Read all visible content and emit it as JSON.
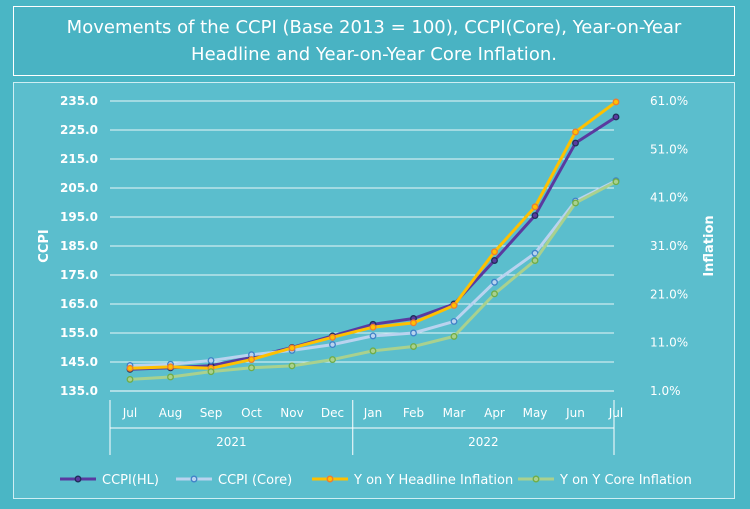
{
  "chart_data": {
    "type": "line",
    "title": "Movements of the CCPI (Base 2013 = 100), CCPI(Core), Year-on-Year Headline and Year-on-Year Core Inflation.",
    "ylabel": "CCPI",
    "y2label": "Inflation",
    "ylim": [
      135,
      235
    ],
    "y2lim": [
      1,
      61
    ],
    "y_ticks": [
      "135.0",
      "145.0",
      "155.0",
      "165.0",
      "175.0",
      "185.0",
      "195.0",
      "205.0",
      "215.0",
      "225.0",
      "235.0"
    ],
    "y2_ticks": [
      "1.0%",
      "11.0%",
      "21.0%",
      "31.0%",
      "41.0%",
      "51.0%",
      "61.0%"
    ],
    "categories": [
      "Jul",
      "Aug",
      "Sep",
      "Oct",
      "Nov",
      "Dec",
      "Jan",
      "Feb",
      "Mar",
      "Apr",
      "May",
      "Jun",
      "Jul"
    ],
    "groups": [
      {
        "label": "2021",
        "count": 6
      },
      {
        "label": "2022",
        "count": 7
      }
    ],
    "legend_position": "bottom",
    "series": [
      {
        "name": "CCPI(HL)",
        "axis": "left",
        "color": "#5a3aa0",
        "marker": "#1f2f5a",
        "values": [
          142.5,
          143.0,
          143.7,
          146.6,
          150.0,
          154.0,
          158.0,
          160.0,
          165.0,
          180.0,
          195.5,
          220.5,
          229.5
        ]
      },
      {
        "name": "CCPI (Core)",
        "axis": "left",
        "color": "#b9d3ef",
        "marker": "#3f82c8",
        "values": [
          143.8,
          144.2,
          145.5,
          147.5,
          149.0,
          151.0,
          154.0,
          155.0,
          159.0,
          172.5,
          182.5,
          200.5,
          207.5
        ]
      },
      {
        "name": "Y on Y Headline Inflation",
        "axis": "right",
        "color": "#ffc000",
        "marker": "#ed7d31",
        "values": [
          5.7,
          6.0,
          5.7,
          7.5,
          9.9,
          12.1,
          14.2,
          15.1,
          18.7,
          29.8,
          39.1,
          54.6,
          60.8
        ]
      },
      {
        "name": "Y on Y Core Inflation",
        "axis": "right",
        "color": "#a9d18e",
        "marker": "#70ad47",
        "values": [
          3.4,
          3.9,
          5.0,
          5.8,
          6.2,
          7.5,
          9.3,
          10.2,
          12.3,
          21.1,
          28.0,
          39.9,
          44.3
        ]
      }
    ]
  }
}
